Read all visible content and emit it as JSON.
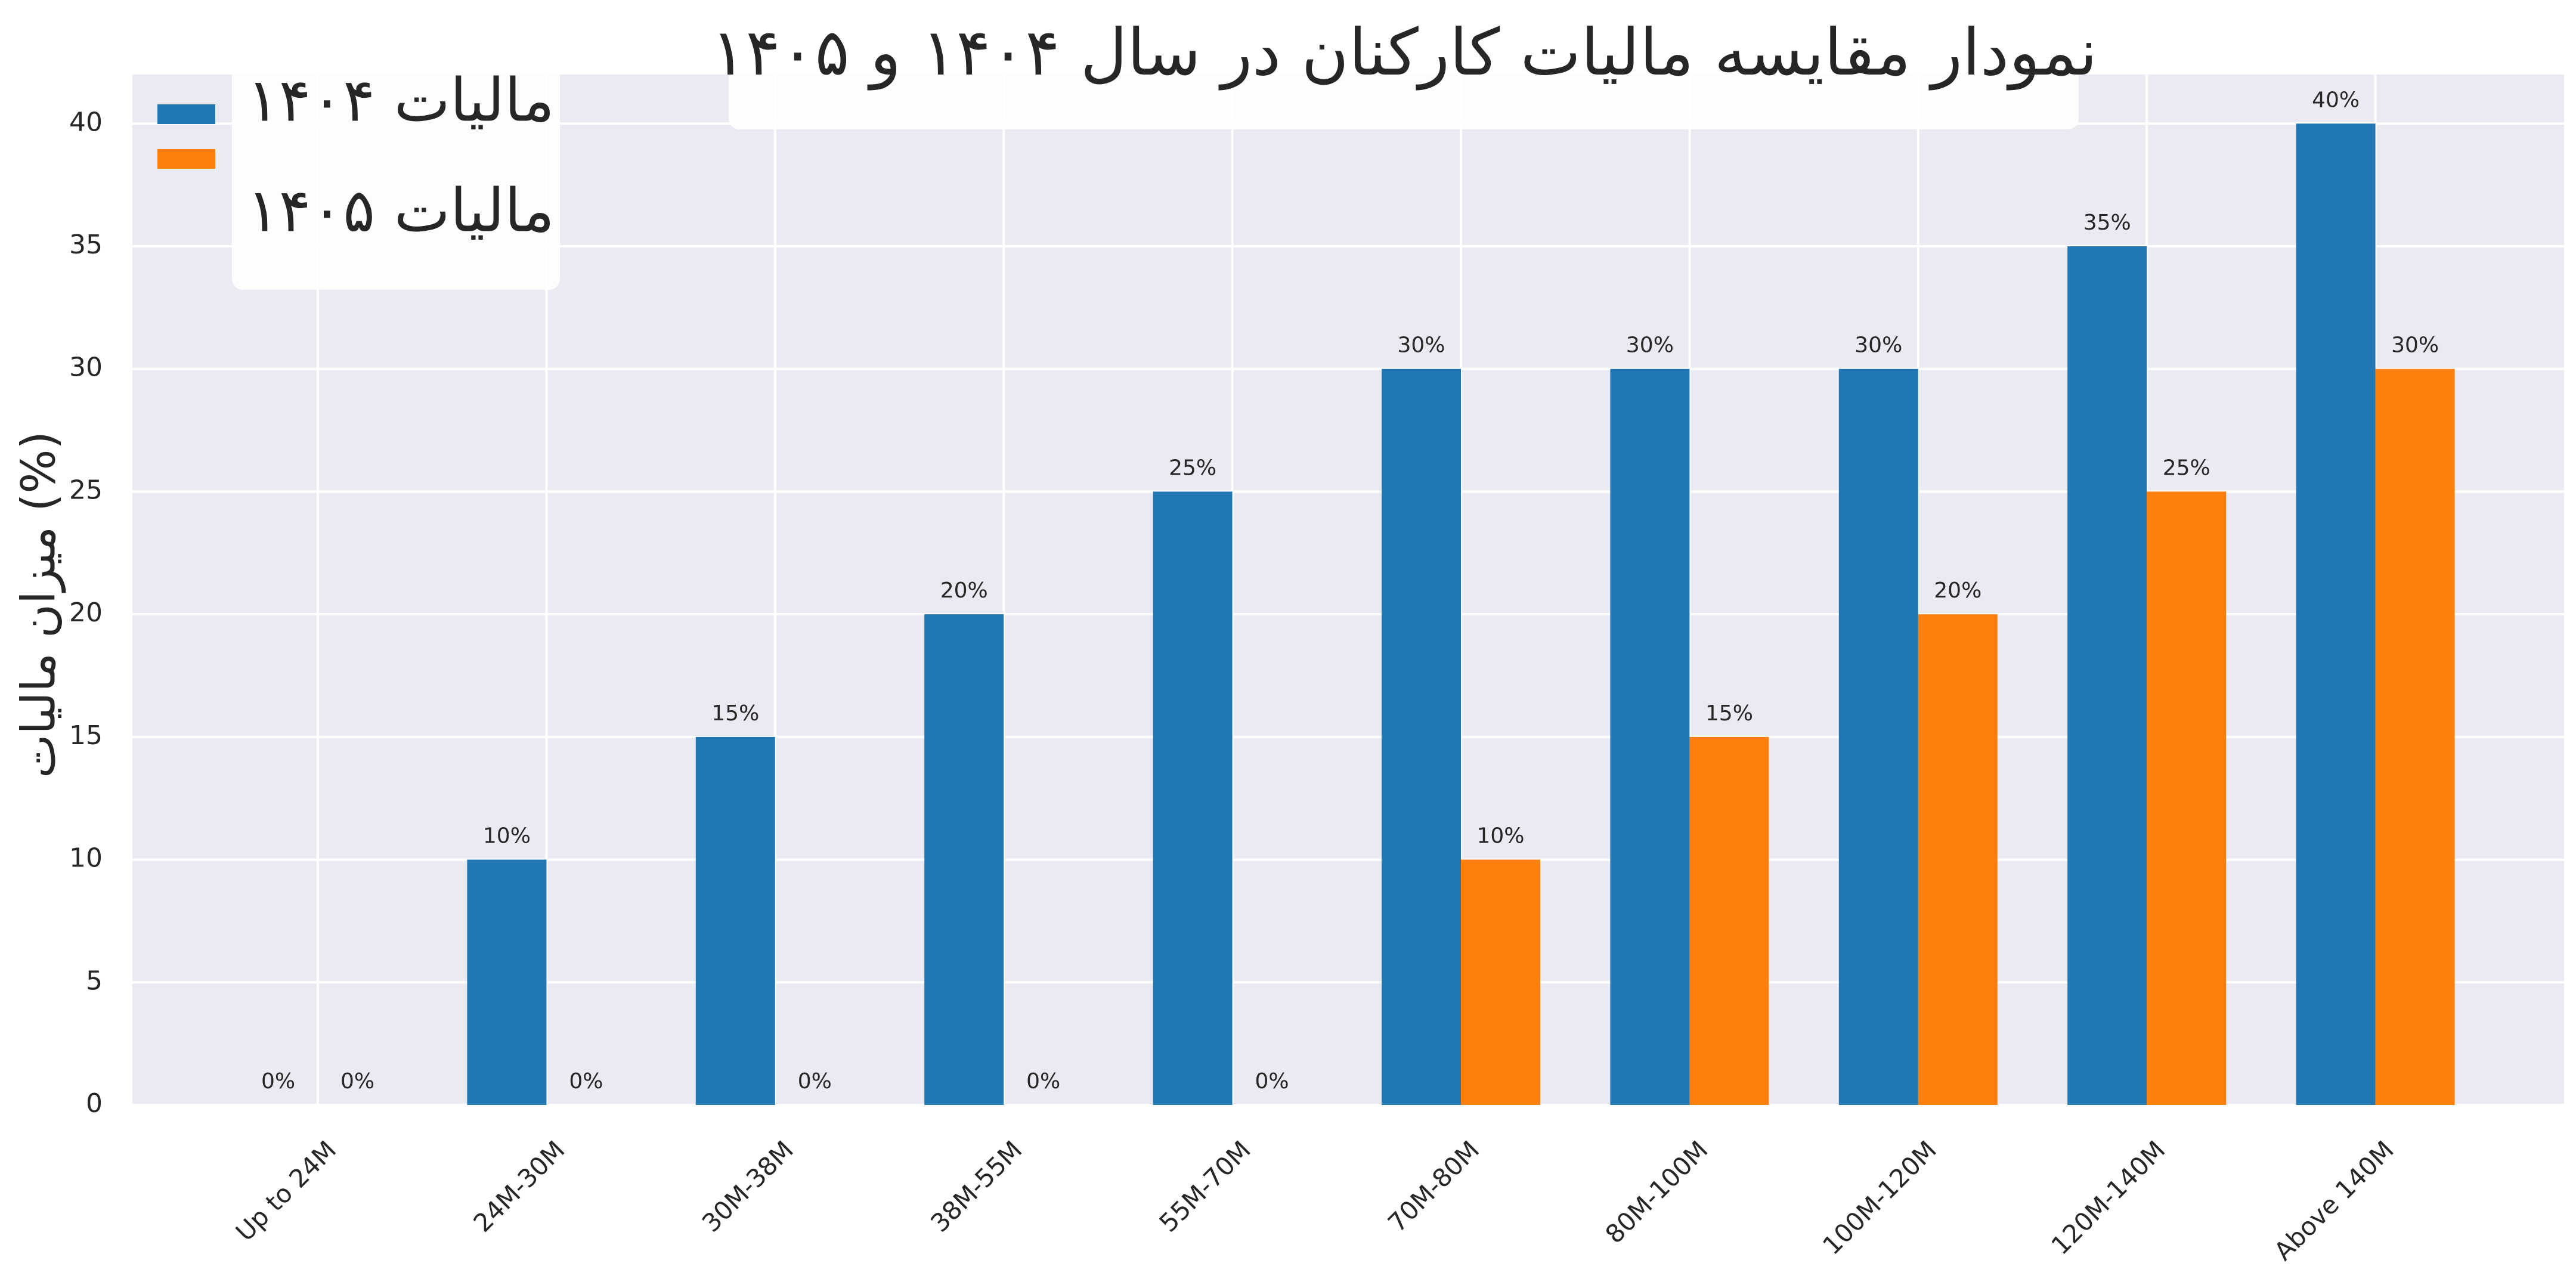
{
  "chart_data": {
    "type": "bar",
    "title": "نمودار مقایسه مالیات کارکنان در سال ۱۴۰۴ و ۱۴۰۵",
    "y_label": "میزان مالیات (%)",
    "categories": [
      "Up to 24M",
      "24M-30M",
      "30M-38M",
      "38M-55M",
      "55M-70M",
      "70M-80M",
      "80M-100M",
      "100M-120M",
      "120M-140M",
      "Above 140M"
    ],
    "series": [
      {
        "name": "مالیات ۱۴۰۴",
        "color": "#2077b4",
        "values": [
          0,
          10,
          15,
          20,
          25,
          30,
          30,
          30,
          35,
          40
        ],
        "value_labels": [
          "0%",
          "10%",
          "15%",
          "20%",
          "25%",
          "30%",
          "30%",
          "30%",
          "35%",
          "40%"
        ]
      },
      {
        "name": "مالیات ۱۴۰۵",
        "color": "#ff7f0e",
        "values": [
          0,
          0,
          0,
          0,
          0,
          10,
          15,
          20,
          25,
          30
        ],
        "value_labels": [
          "0%",
          "0%",
          "0%",
          "0%",
          "0%",
          "10%",
          "15%",
          "20%",
          "25%",
          "30%"
        ]
      }
    ],
    "ylim": [
      0,
      42
    ],
    "yticks": [
      0,
      5,
      10,
      15,
      20,
      25,
      30,
      35,
      40
    ],
    "grid": true,
    "legend": "upper left"
  }
}
